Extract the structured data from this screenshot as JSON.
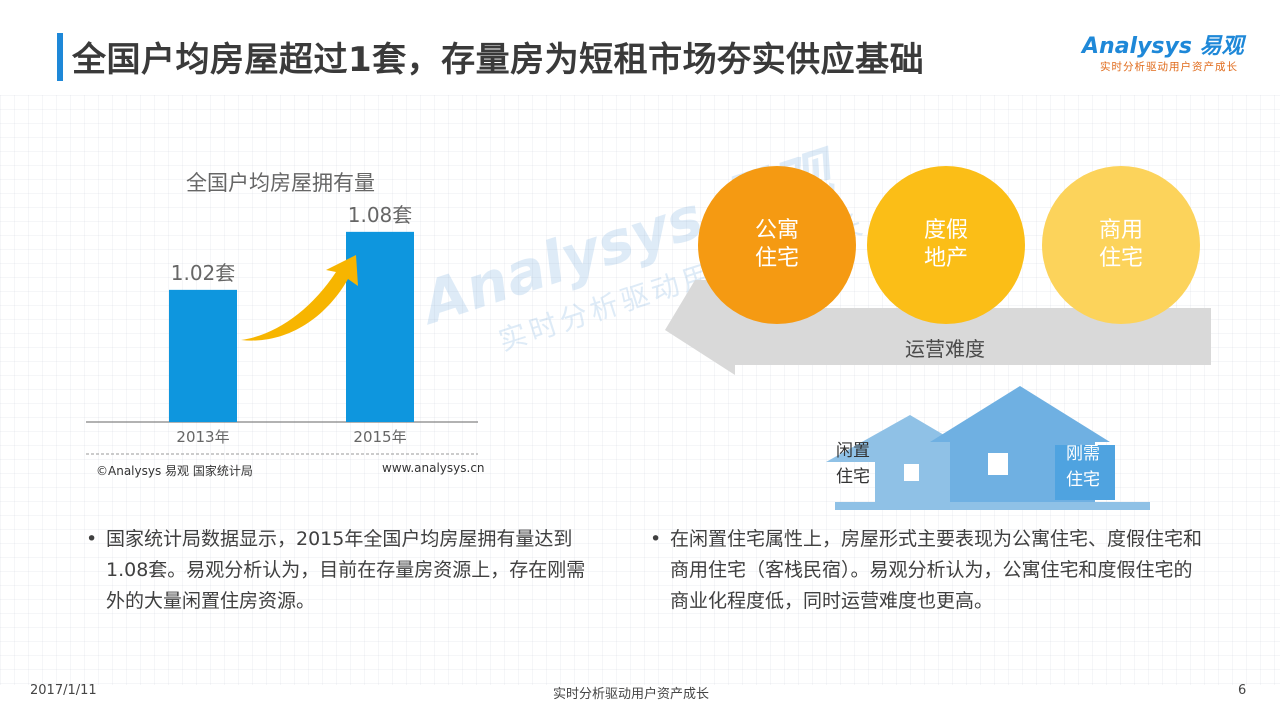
{
  "title": "全国户均房屋超过1套，存量房为短租市场夯实供应基础",
  "logo": {
    "main": "Analysys 易观",
    "tagline": "实时分析驱动用户资产成长"
  },
  "chart_data": {
    "type": "bar",
    "title": "全国户均房屋拥有量",
    "categories": [
      "2013年",
      "2015年"
    ],
    "values": [
      1.02,
      1.08
    ],
    "value_labels": [
      "1.02套",
      "1.08套"
    ],
    "source": "©Analysys 易观 国家统计局",
    "url": "www.analysys.cn",
    "bar_color": "#0e96de",
    "arrow_color": "#f7b500"
  },
  "circles": [
    {
      "label": "公寓\n住宅",
      "color": "#f59a12"
    },
    {
      "label": "度假\n地产",
      "color": "#fbbe17"
    },
    {
      "label": "商用\n住宅",
      "color": "#fcd35b"
    }
  ],
  "difficulty_label": "运营难度",
  "house_labels": {
    "idle": "闲置\n住宅",
    "need": "刚需\n住宅"
  },
  "bullets": {
    "left": "国家统计局数据显示，2015年全国户均房屋拥有量达到1.08套。易观分析认为，目前在存量房资源上，存在刚需外的大量闲置住房资源。",
    "right": "在闲置住宅属性上，房屋形式主要表现为公寓住宅、度假住宅和商用住宅（客栈民宿）。易观分析认为，公寓住宅和度假住宅的商业化程度低，同时运营难度也更高。"
  },
  "bullet_symbol": "•",
  "footer": {
    "date": "2017/1/11",
    "center": "实时分析驱动用户资产成长",
    "page": "6"
  }
}
